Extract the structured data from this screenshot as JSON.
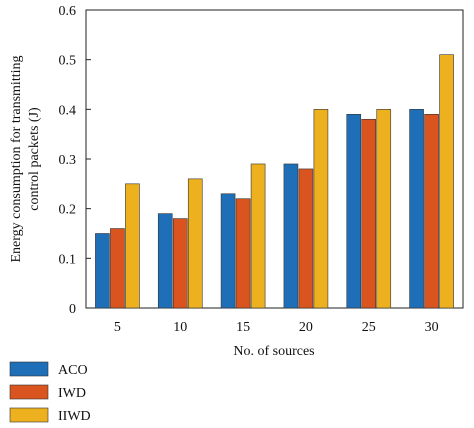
{
  "chart_data": {
    "type": "bar",
    "title": "",
    "xlabel": "No. of sources",
    "ylabel_lines": [
      "Energy consumption for transmitting",
      "control packets (J)"
    ],
    "categories": [
      "5",
      "10",
      "15",
      "20",
      "25",
      "30"
    ],
    "ylim": [
      0,
      0.6
    ],
    "yticks": [
      "0",
      "0.1",
      "0.2",
      "0.3",
      "0.4",
      "0.5",
      "0.6"
    ],
    "grid": false,
    "legend_position": "bottom-left",
    "series": [
      {
        "name": "ACO",
        "color": "#1f6fb8",
        "values": [
          0.15,
          0.19,
          0.23,
          0.29,
          0.39,
          0.4
        ]
      },
      {
        "name": "IWD",
        "color": "#d9541e",
        "values": [
          0.16,
          0.18,
          0.22,
          0.28,
          0.38,
          0.39
        ]
      },
      {
        "name": "IIWD",
        "color": "#edb120",
        "values": [
          0.25,
          0.26,
          0.29,
          0.4,
          0.4,
          0.51
        ]
      }
    ]
  }
}
